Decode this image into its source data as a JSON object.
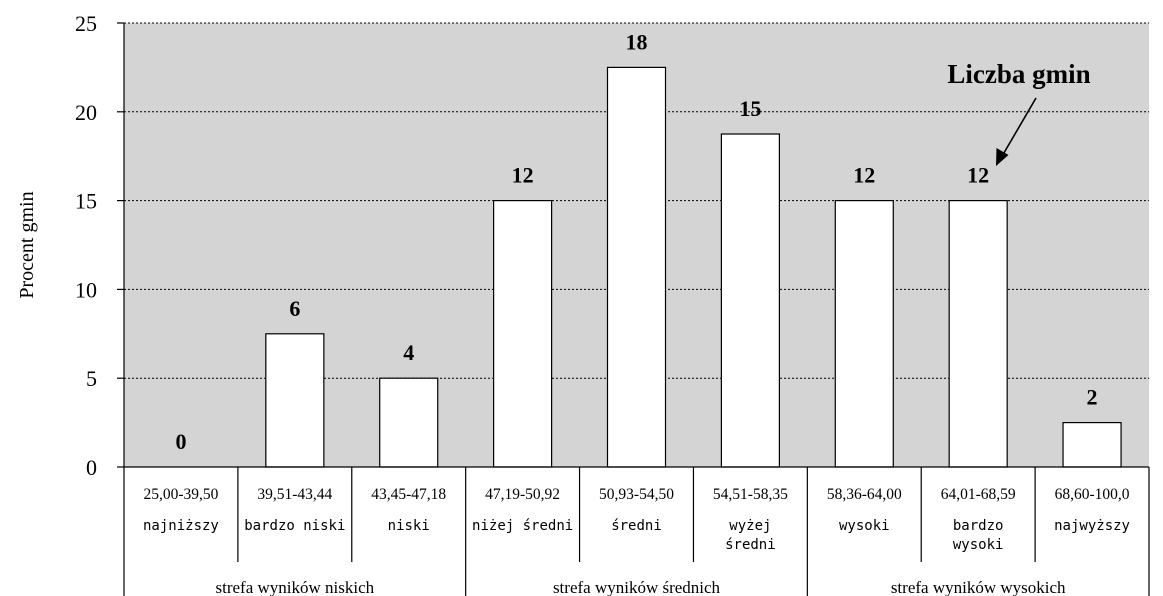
{
  "chart_data": {
    "type": "bar",
    "ylabel": "Procent gmin",
    "ylim": [
      0,
      25
    ],
    "yticks": [
      0,
      5,
      10,
      15,
      20,
      25
    ],
    "grid": true,
    "colors": {
      "plot_bg": "#d4d4d4",
      "bar_fill": "#ffffff",
      "bar_stroke": "#000000"
    },
    "categories": [
      {
        "range": "25,00-39,50",
        "level": [
          "najniższy"
        ]
      },
      {
        "range": "39,51-43,44",
        "level": [
          "bardzo niski"
        ]
      },
      {
        "range": "43,45-47,18",
        "level": [
          "niski"
        ]
      },
      {
        "range": "47,19-50,92",
        "level": [
          "niżej średni"
        ]
      },
      {
        "range": "50,93-54,50",
        "level": [
          "średni"
        ]
      },
      {
        "range": "54,51-58,35",
        "level": [
          "wyżej",
          "średni"
        ]
      },
      {
        "range": "58,36-64,00",
        "level": [
          "wysoki"
        ]
      },
      {
        "range": "64,01-68,59",
        "level": [
          "bardzo",
          "wysoki"
        ]
      },
      {
        "range": "68,60-100,0",
        "level": [
          "najwyższy"
        ]
      }
    ],
    "values": [
      0,
      7.5,
      5,
      15,
      22.5,
      18.75,
      15,
      15,
      2.5
    ],
    "data_labels": [
      "0",
      "6",
      "4",
      "12",
      "18",
      "15",
      "12",
      "12",
      "2"
    ],
    "annotation": {
      "text": "Liczba gmin",
      "points_to": "64,01-68,59"
    },
    "zones": [
      {
        "label": "strefa wyników niskich",
        "span": 3
      },
      {
        "label": "strefa wyników średnich",
        "span": 3
      },
      {
        "label": "strefa wyników wysokich",
        "span": 3
      }
    ]
  }
}
